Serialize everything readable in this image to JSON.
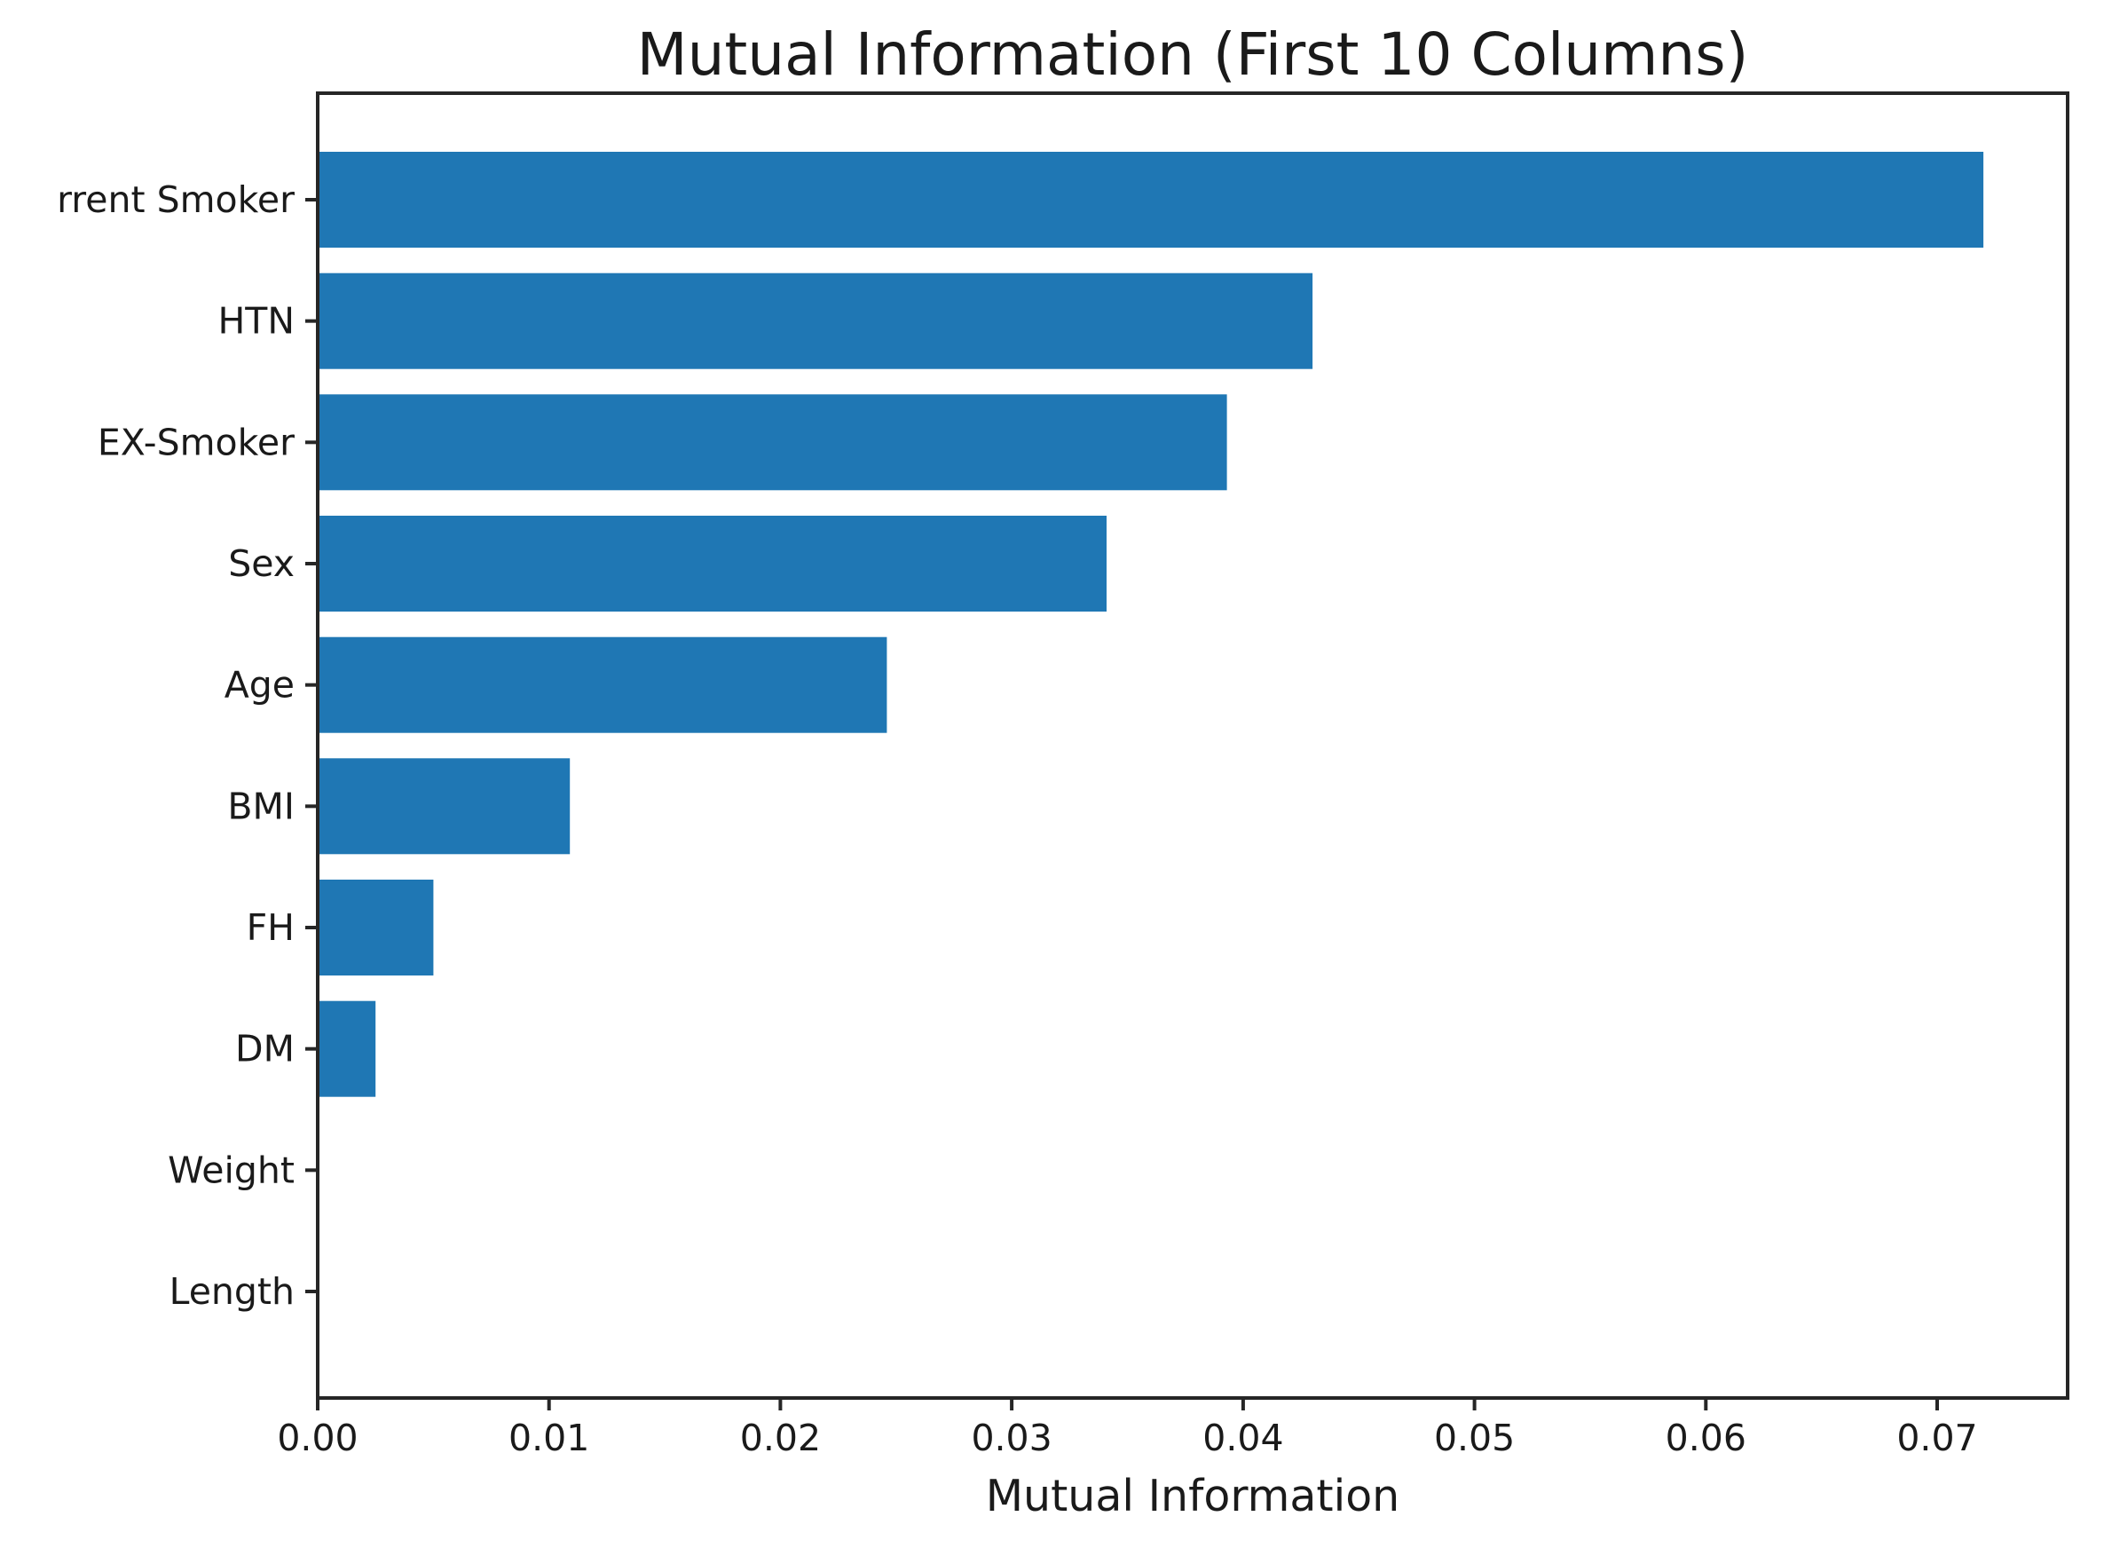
{
  "figure": {
    "background": "#ffffff"
  },
  "chart_data": {
    "type": "bar",
    "orientation": "horizontal",
    "title": "Mutual Information (First 10 Columns)",
    "xlabel": "Mutual Information",
    "ylabel": "",
    "categories": [
      "rrent Smoker",
      "HTN",
      "EX-Smoker",
      "Sex",
      "Age",
      "BMI",
      "FH",
      "DM",
      "Weight",
      "Length"
    ],
    "values": [
      0.072,
      0.043,
      0.0393,
      0.0341,
      0.0246,
      0.0109,
      0.005,
      0.0025,
      0,
      0
    ],
    "xlim": [
      0,
      0.0757
    ],
    "xticks": [
      0,
      0.01,
      0.02,
      0.03,
      0.04,
      0.05,
      0.06,
      0.07
    ],
    "xtick_labels": [
      "0.00",
      "0.01",
      "0.02",
      "0.03",
      "0.04",
      "0.05",
      "0.06",
      "0.07"
    ],
    "grid": false,
    "legend": null,
    "bar_color": "#1f77b4",
    "text_color": "#1a1a1a",
    "spine_color": "#262626"
  }
}
